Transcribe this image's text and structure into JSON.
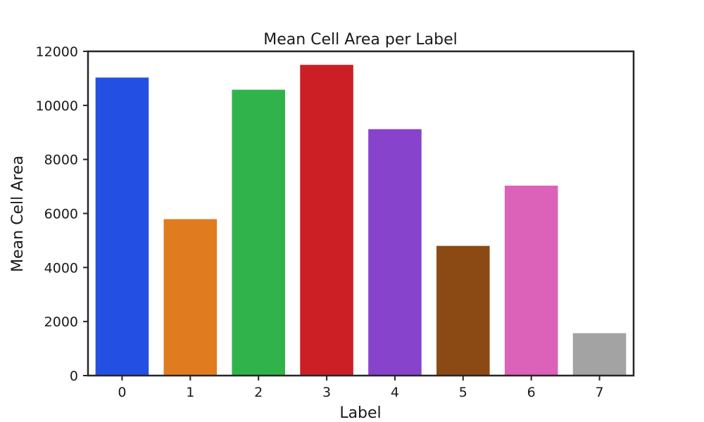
{
  "chart_data": {
    "type": "bar",
    "title": "Mean Cell Area per Label",
    "xlabel": "Label",
    "ylabel": "Mean Cell Area",
    "categories": [
      "0",
      "1",
      "2",
      "3",
      "4",
      "5",
      "6",
      "7"
    ],
    "values": [
      11030,
      5790,
      10580,
      11500,
      9120,
      4800,
      7030,
      1570
    ],
    "colors": [
      "#2350e3",
      "#e07c1f",
      "#30b34a",
      "#cb1e25",
      "#8743cc",
      "#8b4a14",
      "#dc61b9",
      "#a3a3a3"
    ],
    "ylim": [
      0,
      12000
    ],
    "yticks": [
      0,
      2000,
      4000,
      6000,
      8000,
      10000,
      12000
    ],
    "grid": false,
    "legend": "none"
  }
}
